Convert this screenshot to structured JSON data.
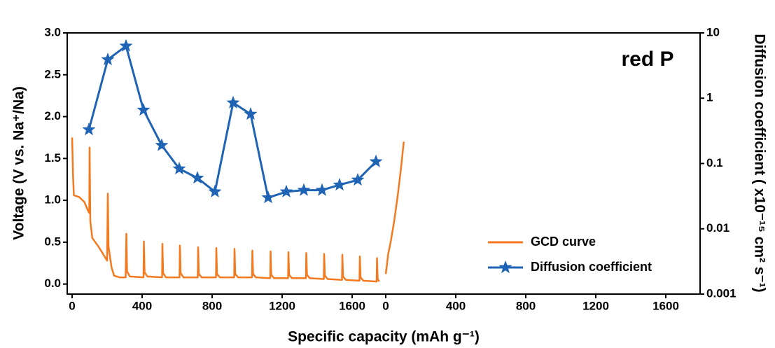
{
  "chart_data": {
    "type": "line",
    "annotation": "red P",
    "xlabel": "Specific capacity (mAh g⁻¹)",
    "ylabel": "Voltage (V vs. Na⁺/Na)",
    "y2label": "Diffusion coefficient ( x10⁻¹⁵ cm² s⁻¹)",
    "xlim": [
      -28,
      3588
    ],
    "xticks": [
      0,
      400,
      800,
      1200,
      1600,
      {
        "value": 1792,
        "label": "0"
      },
      {
        "value": 2192,
        "label": "400"
      },
      {
        "value": 2592,
        "label": "800"
      },
      {
        "value": 2992,
        "label": "1200"
      },
      {
        "value": 3392,
        "label": "1600"
      }
    ],
    "ylim": [
      -0.12,
      3.0
    ],
    "yticks": [
      {
        "value": 0,
        "label": "0.0"
      },
      0.5,
      {
        "value": 1,
        "label": "1.0"
      },
      1.5,
      {
        "value": 2,
        "label": "2.0"
      },
      2.5,
      {
        "value": 3,
        "label": "3.0"
      }
    ],
    "y2lim": [
      0.001,
      10
    ],
    "y2ticks": [
      0.001,
      0.01,
      0.1,
      1,
      10
    ],
    "y2scale": "log",
    "legend": "lower right",
    "series": [
      {
        "name": "GCD curve",
        "color": "#f47a20",
        "axis": "y",
        "x": [
          0,
          5,
          10,
          40,
          70,
          90,
          98,
          100,
          104,
          115,
          150,
          185,
          200,
          204,
          208,
          225,
          240,
          270,
          306,
          310,
          314,
          330,
          408,
          410,
          414,
          430,
          514,
          516,
          520,
          536,
          614,
          616,
          620,
          636,
          718,
          720,
          724,
          740,
          822,
          824,
          828,
          844,
          926,
          928,
          932,
          948,
          1028,
          1030,
          1034,
          1050,
          1132,
          1134,
          1138,
          1154,
          1234,
          1236,
          1240,
          1256,
          1336,
          1338,
          1342,
          1358,
          1438,
          1440,
          1444,
          1460,
          1542,
          1544,
          1548,
          1564,
          1642,
          1644,
          1648,
          1664,
          1740,
          1742,
          1746,
          1755,
          1770,
          1792,
          1800,
          1805,
          1820,
          1840,
          1860,
          1880,
          1890,
          1895
        ],
        "values": [
          1.75,
          1.3,
          1.06,
          1.04,
          0.98,
          0.88,
          0.85,
          1.63,
          0.75,
          0.55,
          0.45,
          0.33,
          0.28,
          1.08,
          0.45,
          0.2,
          0.1,
          0.08,
          0.08,
          0.6,
          0.15,
          0.09,
          0.08,
          0.51,
          0.14,
          0.09,
          0.08,
          0.48,
          0.13,
          0.08,
          0.08,
          0.46,
          0.13,
          0.08,
          0.08,
          0.44,
          0.12,
          0.08,
          0.08,
          0.43,
          0.12,
          0.08,
          0.08,
          0.42,
          0.12,
          0.08,
          0.08,
          0.4,
          0.12,
          0.08,
          0.07,
          0.39,
          0.11,
          0.07,
          0.07,
          0.38,
          0.11,
          0.07,
          0.07,
          0.37,
          0.11,
          0.07,
          0.06,
          0.36,
          0.1,
          0.06,
          0.05,
          0.35,
          0.09,
          0.05,
          0.04,
          0.33,
          0.08,
          0.04,
          0.03,
          0.31,
          0.06,
          0.03,
          null,
          0.12,
          0.25,
          0.35,
          0.5,
          0.75,
          1.05,
          1.4,
          1.6,
          1.7
        ]
      },
      {
        "name": "Diffusion coefficient",
        "color": "#1f63b4",
        "axis": "y2",
        "marker": "star",
        "x": [
          96,
          204,
          308,
          408,
          512,
          612,
          716,
          816,
          920,
          1020,
          1120,
          1224,
          1324,
          1428,
          1528,
          1632,
          1736
        ],
        "values": [
          0.33,
          3.9,
          6.3,
          0.66,
          0.19,
          0.083,
          0.06,
          0.037,
          0.85,
          0.57,
          0.03,
          0.037,
          0.039,
          0.039,
          0.047,
          0.056,
          0.107
        ]
      }
    ]
  }
}
